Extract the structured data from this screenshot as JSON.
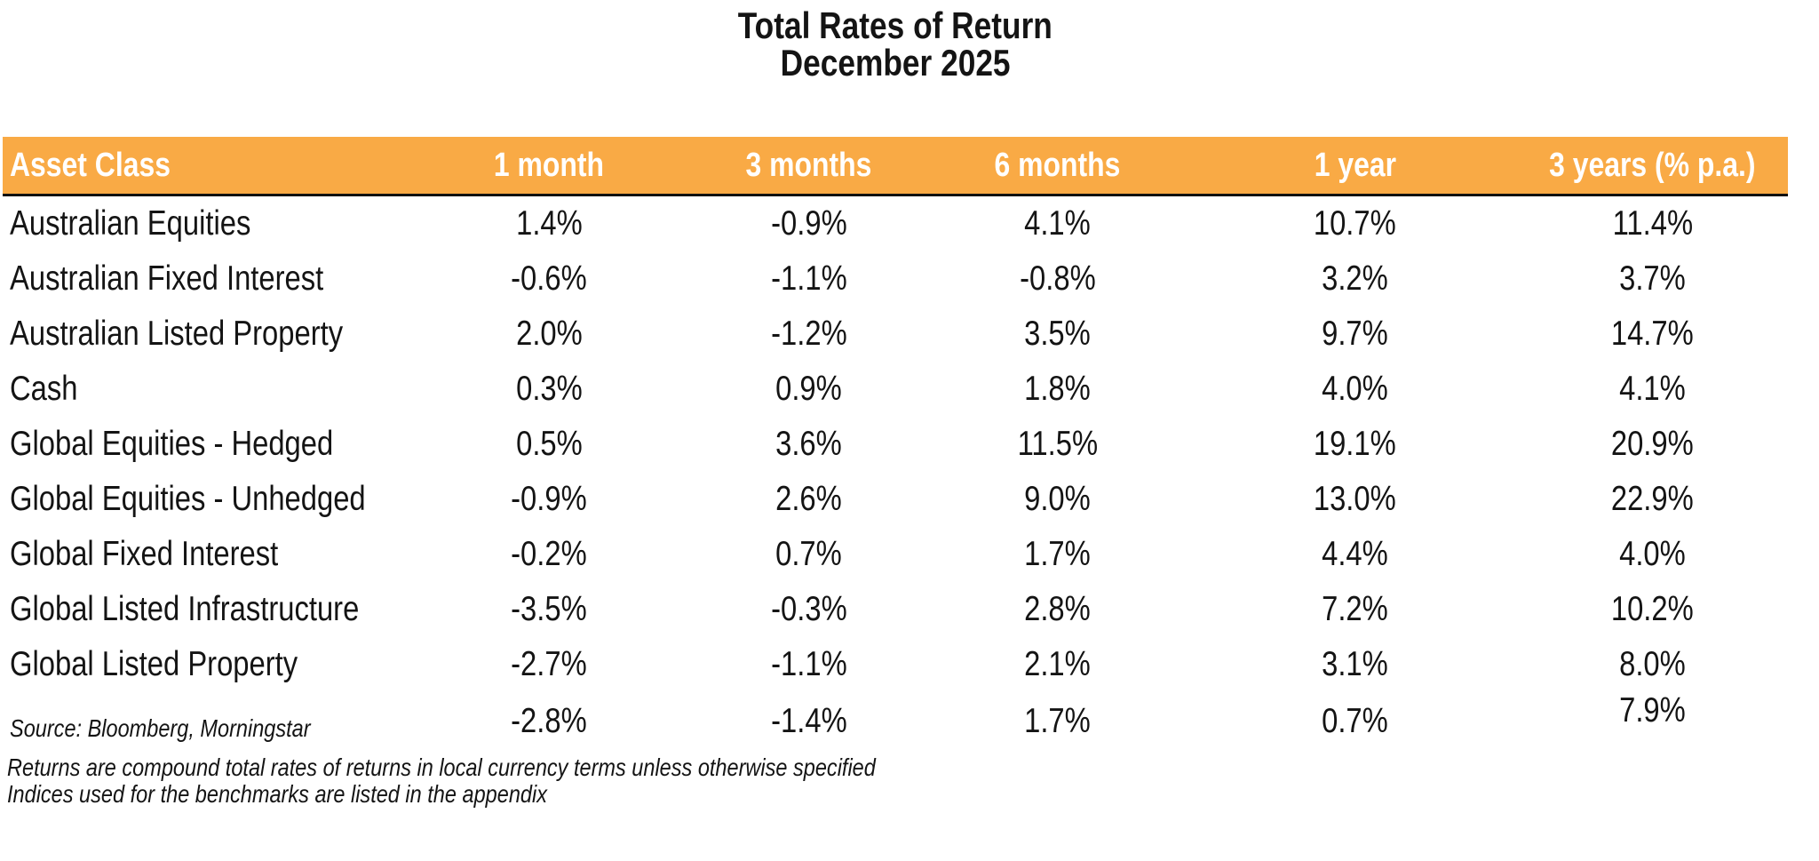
{
  "chart_data": {
    "type": "table",
    "title": "Total Rates of Return",
    "subtitle": "December 2025",
    "units": "%",
    "columns": [
      "Asset Class",
      "1 month",
      "3 months",
      "6 months",
      "1 year",
      "3 years (% p.a.)"
    ],
    "rows": [
      {
        "label": "Australian Equities",
        "values": [
          "1.4%",
          "-0.9%",
          "4.1%",
          "10.7%",
          "11.4%"
        ]
      },
      {
        "label": "Australian Fixed Interest",
        "values": [
          "-0.6%",
          "-1.1%",
          "-0.8%",
          "3.2%",
          "3.7%"
        ]
      },
      {
        "label": "Australian Listed Property",
        "values": [
          "2.0%",
          "-1.2%",
          "3.5%",
          "9.7%",
          "14.7%"
        ]
      },
      {
        "label": "Cash",
        "values": [
          "0.3%",
          "0.9%",
          "1.8%",
          "4.0%",
          "4.1%"
        ]
      },
      {
        "label": "Global Equities - Hedged",
        "values": [
          "0.5%",
          "3.6%",
          "11.5%",
          "19.1%",
          "20.9%"
        ]
      },
      {
        "label": "Global Equities - Unhedged",
        "values": [
          "-0.9%",
          "2.6%",
          "9.0%",
          "13.0%",
          "22.9%"
        ]
      },
      {
        "label": "Global Fixed Interest",
        "values": [
          "-0.2%",
          "0.7%",
          "1.7%",
          "4.4%",
          "4.0%"
        ]
      },
      {
        "label": "Global Listed Infrastructure",
        "values": [
          "-3.5%",
          "-0.3%",
          "2.8%",
          "7.2%",
          "10.2%"
        ]
      },
      {
        "label": "Global Listed Property",
        "values": [
          "-2.7%",
          "-1.1%",
          "2.1%",
          "3.1%",
          "8.0%"
        ]
      },
      {
        "label": "",
        "values": [
          "-2.8%",
          "-1.4%",
          "1.7%",
          "0.7%",
          "7.9%"
        ]
      }
    ]
  },
  "notes": {
    "source": "Source: Bloomberg, Morningstar",
    "note1": "Returns are compound total rates of returns in local currency terms unless otherwise specified",
    "note2": "Indices used for the benchmarks are listed in the appendix"
  },
  "style": {
    "header_bg": "#F9AA45",
    "header_text": "#FFFFFF",
    "text": "#141414",
    "border": "#111111"
  }
}
